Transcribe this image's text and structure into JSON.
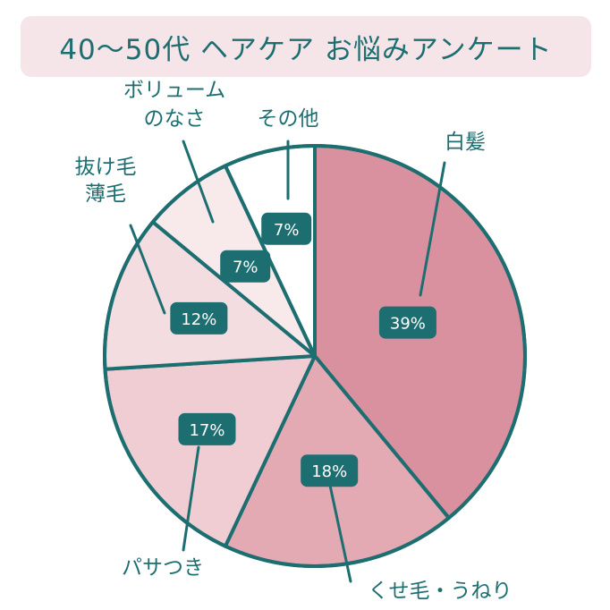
{
  "title": "40～50代 ヘアケア お悩みアンケート",
  "colors": {
    "outline": "#1c6e70",
    "badge": "#1c6e70",
    "text": "#1c6e70",
    "title_bg": "#f6e5e8"
  },
  "chart_data": {
    "type": "pie",
    "start": "12 o'clock, clockwise",
    "slices": [
      {
        "label": "白髪",
        "value": 39,
        "display": "39%",
        "color": "#d9919f"
      },
      {
        "label": "くせ毛・うねり",
        "value": 18,
        "display": "18%",
        "color": "#e4aab4"
      },
      {
        "label": "パサつき",
        "value": 17,
        "display": "17%",
        "color": "#efcdd2"
      },
      {
        "label": "抜け毛\n薄毛",
        "value": 12,
        "display": "12%",
        "color": "#f4dde0"
      },
      {
        "label": "ボリューム\nのなさ",
        "value": 7,
        "display": "7%",
        "color": "#f8e9eb"
      },
      {
        "label": "その他",
        "value": 7,
        "display": "7%",
        "color": "#ffffff"
      }
    ]
  }
}
